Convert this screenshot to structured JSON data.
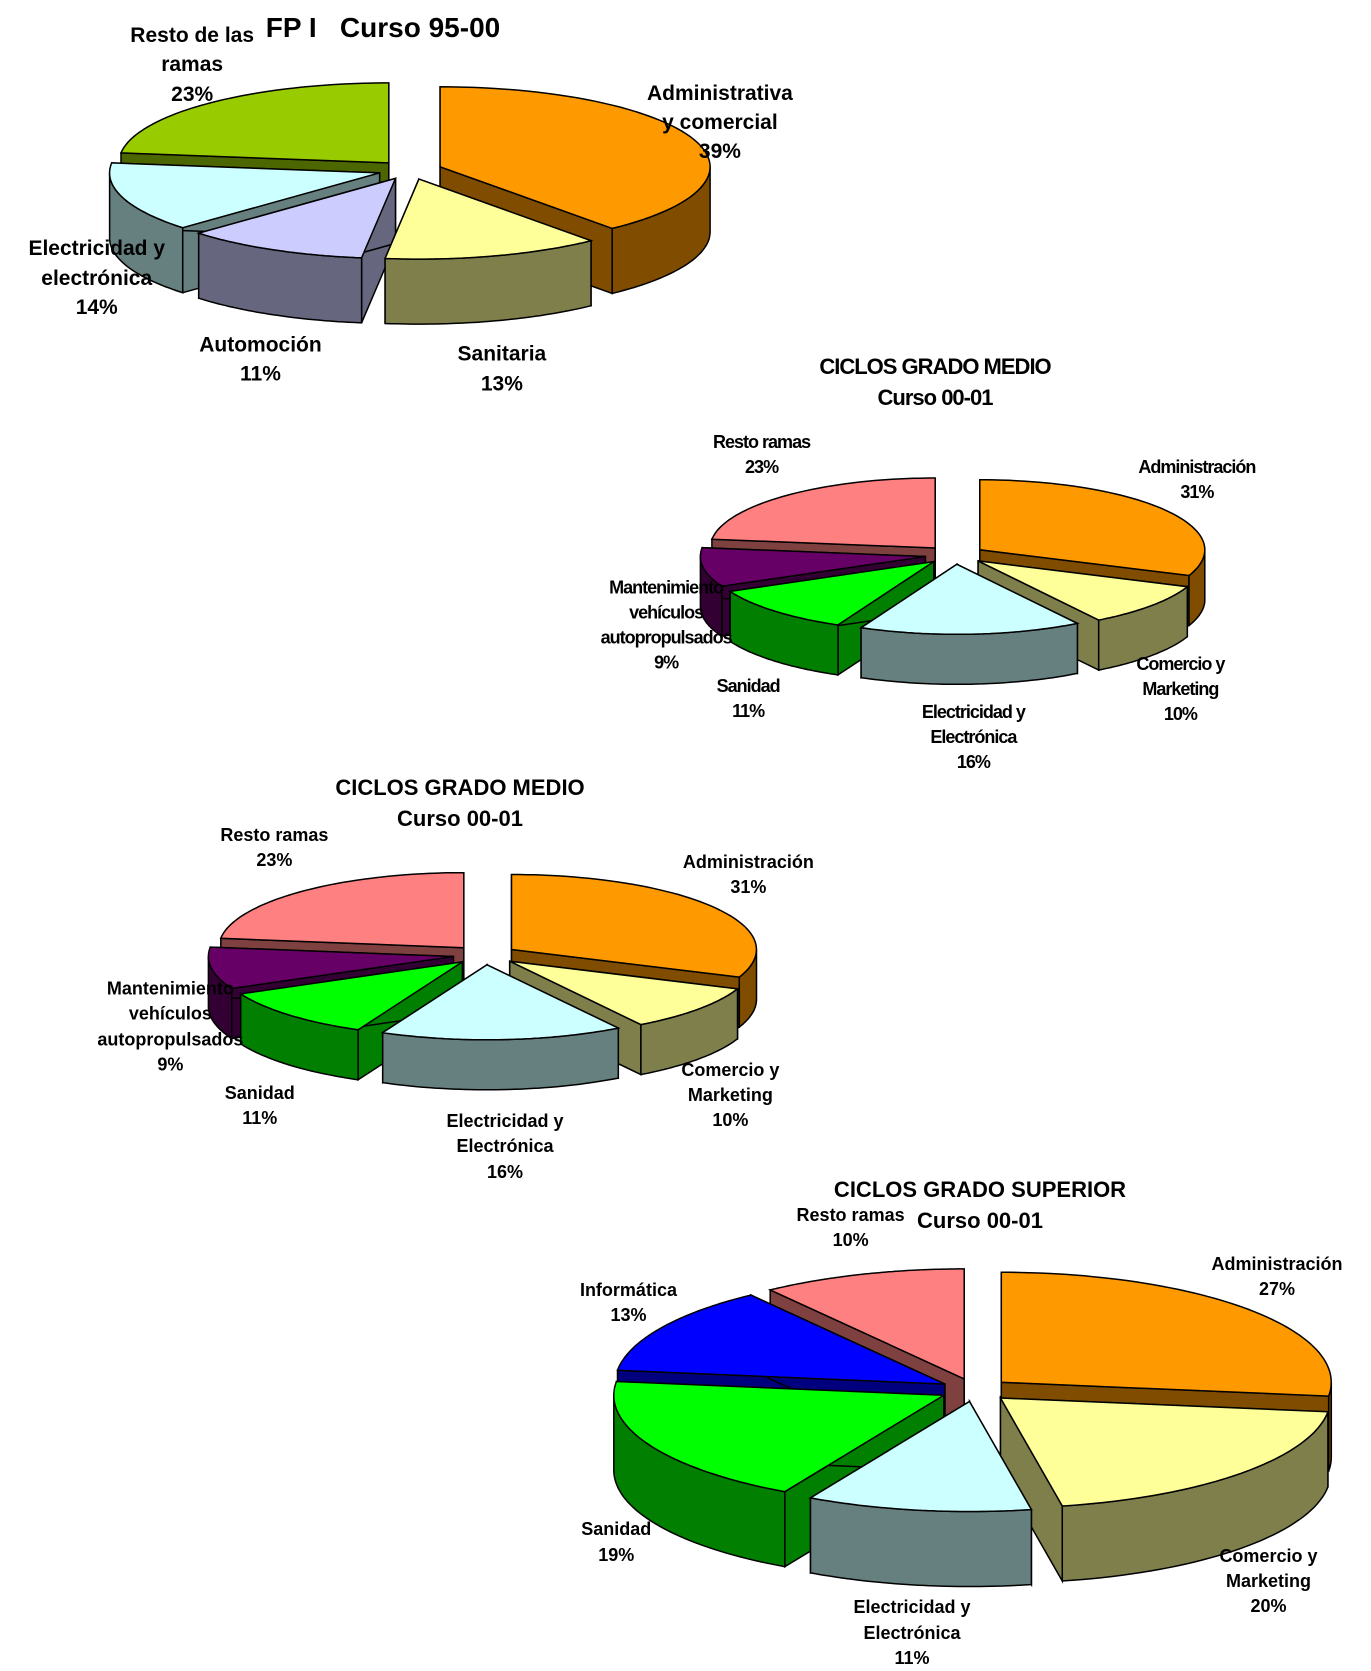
{
  "chart_data": [
    {
      "type": "pie3d",
      "title": "FP I   Curso 95-00",
      "categories": [
        "Administrativa y comercial",
        "Sanitaria",
        "Automoción",
        "Electricidad y electrónica",
        "Resto de las ramas"
      ],
      "values": [
        39,
        13,
        11,
        14,
        23
      ],
      "value_labels": [
        "39%",
        "13%",
        "11%",
        "14%",
        "23%"
      ],
      "colors": [
        "#FF9900",
        "#FFFF99",
        "#CCCCFF",
        "#CCFFFF",
        "#99CC00"
      ]
    },
    {
      "type": "pie3d",
      "title": "CICLOS GRADO MEDIO",
      "subtitle": "Curso 00-01",
      "categories": [
        "Administración",
        "Comercio y Marketing",
        "Electricidad y Electrónica",
        "Sanidad",
        "Mantenimiento vehículos autopropulsados",
        "Resto ramas"
      ],
      "values": [
        31,
        10,
        16,
        11,
        9,
        23
      ],
      "value_labels": [
        "31%",
        "10%",
        "16%",
        "11%",
        "9%",
        "23%"
      ],
      "colors": [
        "#FF9900",
        "#FFFF99",
        "#CCFFFF",
        "#00FF00",
        "#660066",
        "#FF8080"
      ]
    },
    {
      "type": "pie3d",
      "title": "CICLOS GRADO MEDIO",
      "subtitle": "Curso 00-01",
      "categories": [
        "Administración",
        "Comercio y Marketing",
        "Electricidad y Electrónica",
        "Sanidad",
        "Mantenimiento vehículos autopropulsados",
        "Resto ramas"
      ],
      "values": [
        31,
        10,
        16,
        11,
        9,
        23
      ],
      "value_labels": [
        "31%",
        "10%",
        "16%",
        "11%",
        "9%",
        "23%"
      ],
      "colors": [
        "#FF9900",
        "#FFFF99",
        "#CCFFFF",
        "#00FF00",
        "#660066",
        "#FF8080"
      ]
    },
    {
      "type": "pie3d",
      "title": "CICLOS GRADO SUPERIOR",
      "subtitle": "Curso 00-01",
      "categories": [
        "Administración",
        "Comercio y Marketing",
        "Electricidad y Electrónica",
        "Sanidad",
        "Informática",
        "Resto ramas"
      ],
      "values": [
        27,
        20,
        11,
        19,
        13,
        10
      ],
      "value_labels": [
        "27%",
        "20%",
        "11%",
        "19%",
        "13%",
        "10%"
      ],
      "colors": [
        "#FF9900",
        "#FFFF99",
        "#CCFFFF",
        "#00FF00",
        "#0000FF",
        "#FF8080"
      ]
    }
  ]
}
